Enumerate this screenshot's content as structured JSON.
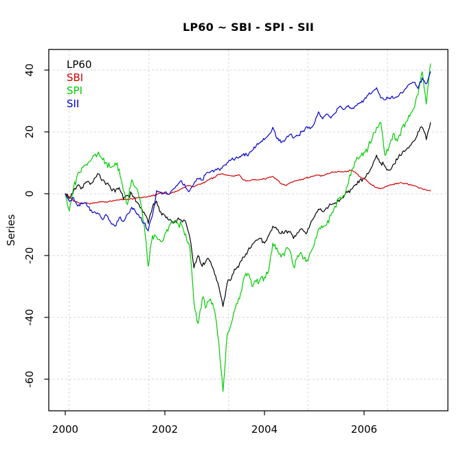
{
  "title": "LP60 ~ SBI - SPI - SII",
  "ylabel": "Series",
  "legend": [
    {
      "label": "LP60",
      "color": "#000000"
    },
    {
      "label": "SBI",
      "color": "#CD0000"
    },
    {
      "label": "SPI",
      "color": "#00CD00"
    },
    {
      "label": "SII",
      "color": "#0000CD"
    }
  ],
  "axes": {
    "x_tick_labels": [
      "2000",
      "2002",
      "2004",
      "2006"
    ],
    "x_tick_years": [
      2000,
      2002,
      2004,
      2006
    ],
    "y_tick_labels": [
      "40",
      "20",
      "0",
      "-20",
      "-40",
      "-60"
    ],
    "y_ticks": [
      40,
      20,
      0,
      -20,
      -40,
      -60
    ],
    "grid_x_years": [
      2000.08,
      2001.68,
      2003.28,
      2004.87,
      2006.47
    ],
    "grid_color": "#d6d6d6",
    "box_color": "#000000"
  },
  "chart_data": {
    "type": "line",
    "title": "LP60 ~ SBI - SPI - SII",
    "xlabel": "",
    "ylabel": "Series",
    "x_start": 2000.0,
    "x_step": 0.0833333,
    "x_end": 2007.33,
    "xlim": [
      1999.7,
      2007.68
    ],
    "ylim": [
      -70,
      47
    ],
    "grid": "dashed",
    "legend_position": "top-left",
    "series": [
      {
        "name": "LP60",
        "color": "#000000",
        "texture_amplitude": 1.0,
        "values": [
          0,
          -1.5,
          1,
          2.8,
          2,
          3.8,
          3,
          5,
          6.4,
          4.5,
          3.3,
          1.5,
          0.5,
          2,
          -1.8,
          -0.5,
          0,
          -2.5,
          -4.4,
          -6,
          -9.6,
          -4.4,
          -2.4,
          -5.8,
          -7,
          -8.5,
          -9.5,
          -8.4,
          -8.7,
          -9,
          -14,
          -24,
          -20,
          -23.5,
          -21.5,
          -22,
          -26,
          -30,
          -36.5,
          -29,
          -27.5,
          -24.5,
          -22.5,
          -20.5,
          -18.5,
          -16.5,
          -15,
          -14.5,
          -16,
          -13.5,
          -10.5,
          -11.5,
          -12.9,
          -12,
          -12.4,
          -14.5,
          -12.5,
          -11.3,
          -13,
          -10,
          -7.5,
          -5,
          -5.8,
          -4.5,
          -3.5,
          -2.9,
          -2.5,
          -1.3,
          0.4,
          1.5,
          3,
          4.5,
          5,
          6.5,
          9,
          12.5,
          10,
          8.9,
          7.6,
          9.5,
          11,
          12.5,
          14,
          15.5,
          17,
          20,
          21.5,
          17.5,
          23
        ]
      },
      {
        "name": "SBI",
        "color": "#CD0000",
        "texture_amplitude": 0.3,
        "values": [
          0,
          -1,
          -2.4,
          -2.8,
          -3.2,
          -3,
          -3.3,
          -3,
          -2.8,
          -2.6,
          -2.8,
          -2.4,
          -2.2,
          -2,
          -1.9,
          -1.8,
          -1.6,
          -1.4,
          -1.2,
          -1.1,
          -0.9,
          -0.7,
          -0.3,
          0.4,
          0.2,
          -0.2,
          0.5,
          0.9,
          1.6,
          2.4,
          2.7,
          2.2,
          3,
          3.3,
          4,
          4.9,
          5.2,
          6.3,
          6.5,
          6,
          5.8,
          5.9,
          6,
          4.4,
          4.2,
          4.5,
          4.4,
          4.6,
          4.8,
          5.2,
          5.6,
          4.5,
          3.2,
          2.7,
          3.4,
          4,
          4.3,
          4.7,
          5.1,
          5.4,
          5.7,
          6,
          5.8,
          6.3,
          6.8,
          7.1,
          7.2,
          7,
          7.3,
          7.6,
          6.8,
          5.5,
          4.9,
          3.8,
          2.7,
          2,
          1.6,
          2.2,
          2.6,
          3.1,
          3.4,
          3.6,
          3.3,
          3,
          2.6,
          2,
          1.6,
          1.2,
          0.9
        ]
      },
      {
        "name": "SPI",
        "color": "#00CD00",
        "texture_amplitude": 1.5,
        "values": [
          0,
          -5.5,
          2,
          6.5,
          8.5,
          9.5,
          10.5,
          12.5,
          13.5,
          11,
          10,
          8.5,
          10,
          8,
          1,
          -3.5,
          4.5,
          2,
          -1.8,
          -10,
          -23.5,
          -13.5,
          -14,
          -15.5,
          -13,
          -10.5,
          -9,
          -9.5,
          -10,
          -13,
          -17,
          -35,
          -42,
          -34,
          -36.5,
          -34,
          -38,
          -48,
          -64,
          -46,
          -42,
          -37,
          -34,
          -27.5,
          -25.8,
          -30,
          -28.5,
          -27.5,
          -27,
          -25,
          -16,
          -17.5,
          -20.5,
          -18.5,
          -18,
          -23.5,
          -20,
          -19.5,
          -22,
          -19,
          -16.5,
          -11.5,
          -11,
          -10,
          -7,
          -4,
          -1.5,
          -0.5,
          2.5,
          7.5,
          10.5,
          12,
          13.5,
          15,
          18,
          21.5,
          23,
          12.5,
          15,
          19.5,
          17,
          21,
          23,
          25,
          27.5,
          32,
          39.5,
          29,
          42
        ]
      },
      {
        "name": "SII",
        "color": "#0000CD",
        "texture_amplitude": 0.8,
        "values": [
          0,
          -2.5,
          -1.3,
          -4,
          -3,
          -2.9,
          -5.5,
          -5.8,
          -6.5,
          -8.4,
          -7,
          -9.5,
          -10.5,
          -7.8,
          -9,
          -6.5,
          -4.4,
          -6,
          -7.8,
          -9.5,
          -12,
          -7,
          1,
          0.5,
          0.5,
          -0.2,
          1.5,
          2.7,
          4.2,
          2,
          1,
          3.3,
          4.9,
          4.4,
          6.7,
          7.1,
          7.5,
          8,
          9,
          10,
          11,
          11.5,
          12,
          13,
          12.2,
          14,
          15.5,
          16.5,
          17.5,
          19,
          21.5,
          17.8,
          16.5,
          17.5,
          19,
          18,
          18.7,
          20,
          21.6,
          21,
          22.7,
          26.5,
          24.2,
          25.8,
          24.5,
          26,
          28,
          27.2,
          28.2,
          27.5,
          28.5,
          29.5,
          30.5,
          32,
          33,
          34.3,
          31,
          30.4,
          31,
          30.9,
          31.3,
          32.7,
          34,
          35.5,
          36,
          34,
          37.5,
          35.5,
          39.5
        ]
      }
    ]
  }
}
